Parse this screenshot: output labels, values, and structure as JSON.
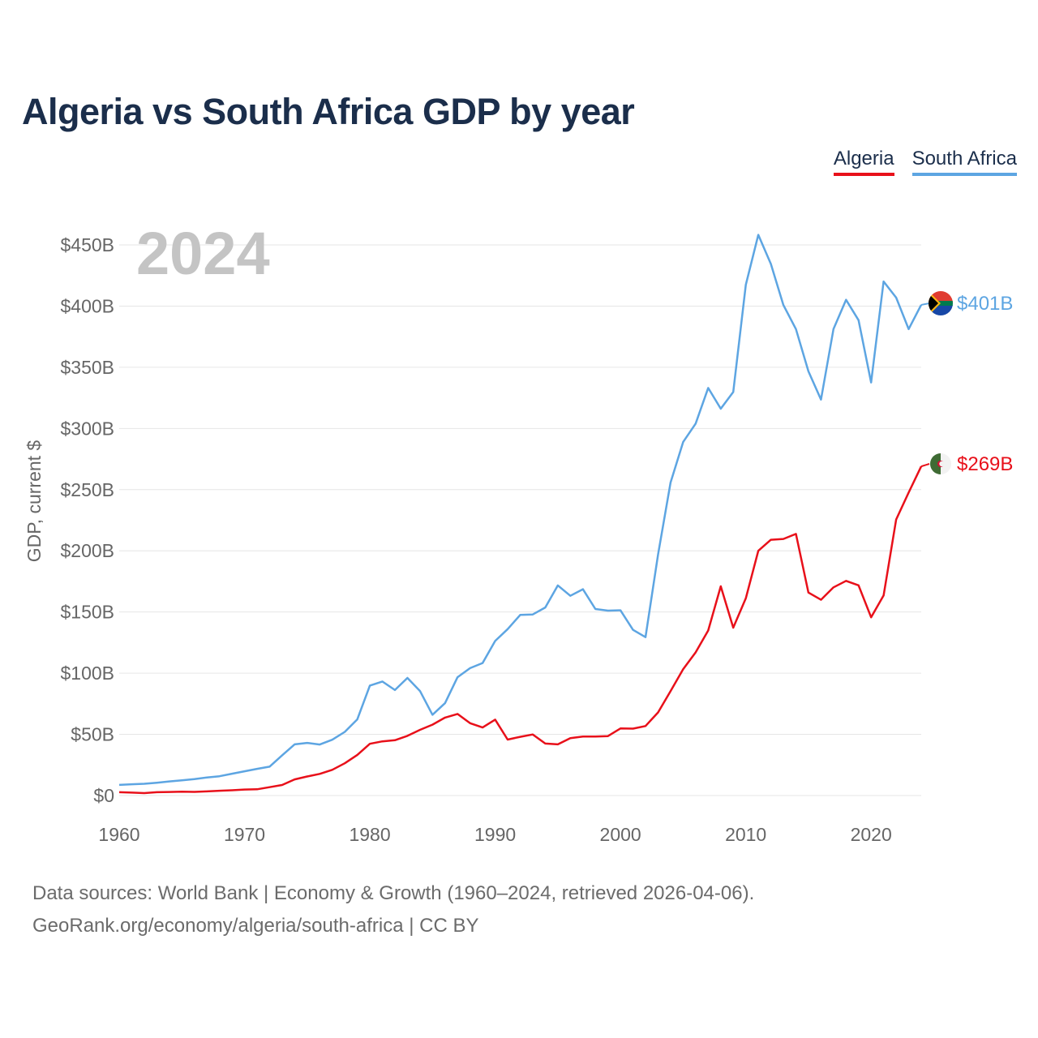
{
  "title": "Algeria vs South Africa GDP by year",
  "year_watermark": "2024",
  "footer": {
    "line1": "Data sources: World Bank | Economy & Growth (1960–2024, retrieved 2026-04-06).",
    "line2": "GeoRank.org/economy/algeria/south-africa | CC BY"
  },
  "chart_data": {
    "type": "line",
    "title": "Algeria vs South Africa GDP by year",
    "ylabel": "GDP, current $",
    "xlabel": "",
    "xlim": [
      1960,
      2024
    ],
    "ylim": [
      0,
      450
    ],
    "y_unit": "billion USD",
    "grid": true,
    "legend": "top-right",
    "xticks": [
      1960,
      1970,
      1980,
      1990,
      2000,
      2010,
      2020
    ],
    "yticks": [
      0,
      50,
      100,
      150,
      200,
      250,
      300,
      350,
      400,
      450
    ],
    "ytick_labels": [
      "$0",
      "$50B",
      "$100B",
      "$150B",
      "$200B",
      "$250B",
      "$300B",
      "$350B",
      "$400B",
      "$450B"
    ],
    "x": [
      1960,
      1961,
      1962,
      1963,
      1964,
      1965,
      1966,
      1967,
      1968,
      1969,
      1970,
      1971,
      1972,
      1973,
      1974,
      1975,
      1976,
      1977,
      1978,
      1979,
      1980,
      1981,
      1982,
      1983,
      1984,
      1985,
      1986,
      1987,
      1988,
      1989,
      1990,
      1991,
      1992,
      1993,
      1994,
      1995,
      1996,
      1997,
      1998,
      1999,
      2000,
      2001,
      2002,
      2003,
      2004,
      2005,
      2006,
      2007,
      2008,
      2009,
      2010,
      2011,
      2012,
      2013,
      2014,
      2015,
      2016,
      2017,
      2018,
      2019,
      2020,
      2021,
      2022,
      2023,
      2024
    ],
    "series": [
      {
        "name": "Algeria",
        "color": "#e8101a",
        "end_label": "$269B",
        "values": [
          2.7,
          2.4,
          2.0,
          2.7,
          2.9,
          3.1,
          3.0,
          3.4,
          3.9,
          4.3,
          4.9,
          5.1,
          6.8,
          8.6,
          13.2,
          15.6,
          17.7,
          21.0,
          26.4,
          33.2,
          42.3,
          44.3,
          45.2,
          48.8,
          53.7,
          57.9,
          63.7,
          66.7,
          59.1,
          55.6,
          62.0,
          45.7,
          48.0,
          49.9,
          42.5,
          41.8,
          46.9,
          48.2,
          48.2,
          48.6,
          54.8,
          54.7,
          56.8,
          67.9,
          85.3,
          103.2,
          117.0,
          134.9,
          171.0,
          137.2,
          161.2,
          200.0,
          209.0,
          209.7,
          213.8,
          165.9,
          160.0,
          170.1,
          175.4,
          171.8,
          145.7,
          163.5,
          225.6,
          247.6,
          269.0
        ]
      },
      {
        "name": "South Africa",
        "color": "#5da5e2",
        "end_label": "$401B",
        "values": [
          8.7,
          9.2,
          9.6,
          10.5,
          11.5,
          12.4,
          13.4,
          14.8,
          15.8,
          17.8,
          19.8,
          21.8,
          23.6,
          32.9,
          41.8,
          43.0,
          41.7,
          45.6,
          52.0,
          62.2,
          89.9,
          93.2,
          86.2,
          96.1,
          85.4,
          66.0,
          75.5,
          96.7,
          104.1,
          108.3,
          126.3,
          136.0,
          147.6,
          148.0,
          153.7,
          171.7,
          163.2,
          168.6,
          152.4,
          151.1,
          151.4,
          135.4,
          129.4,
          197.0,
          255.8,
          288.9,
          303.9,
          333.1,
          316.1,
          329.8,
          417.4,
          458.2,
          434.4,
          400.9,
          381.2,
          346.7,
          323.6,
          381.2,
          405.1,
          388.5,
          337.6,
          420.1,
          406.9,
          381.2,
          401.0
        ]
      }
    ]
  }
}
